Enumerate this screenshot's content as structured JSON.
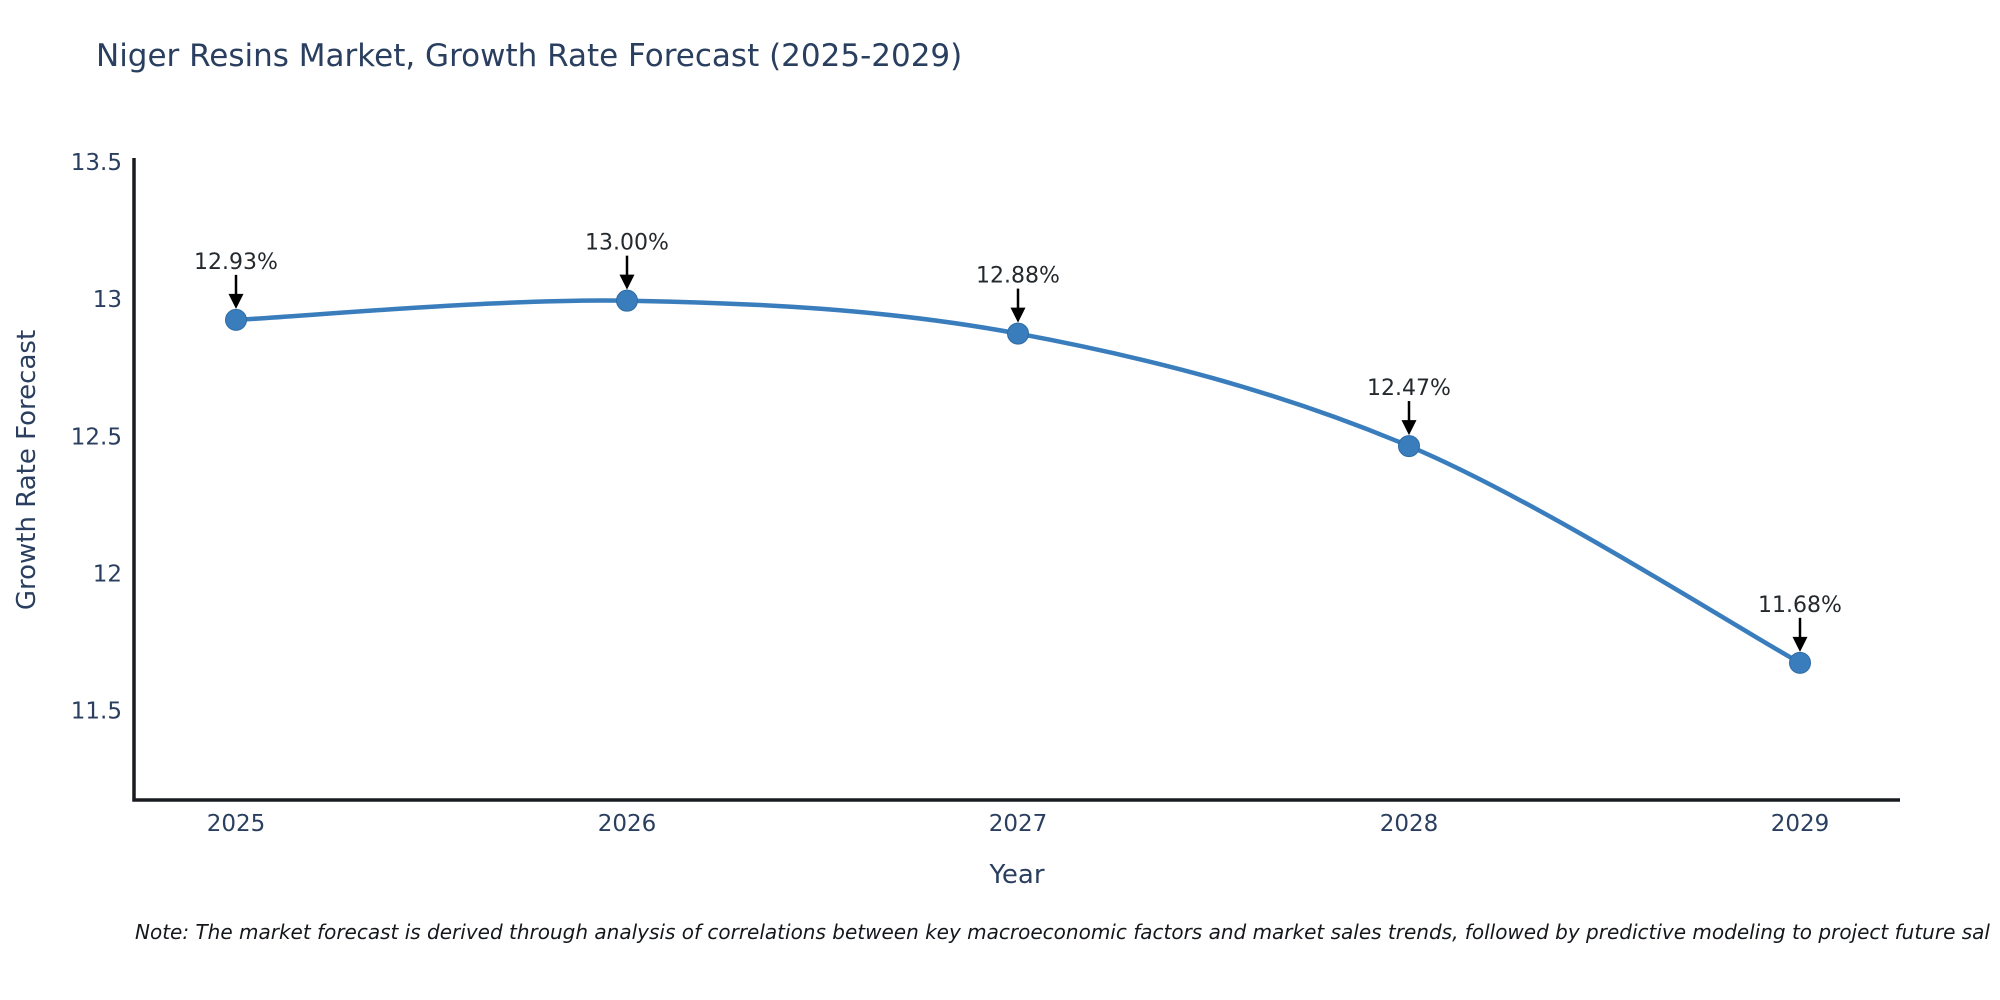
{
  "title": "Niger Resins Market, Growth Rate Forecast (2025-2029)",
  "note": "Note: The market forecast is derived through analysis of correlations between key macroeconomic factors and market sales trends, followed by predictive modeling to project future sal",
  "chart_data": {
    "type": "line",
    "title": "Niger Resins Market, Growth Rate Forecast (2025-2029)",
    "xlabel": "Year",
    "ylabel": "Growth Rate Forecast",
    "categories": [
      "2025",
      "2026",
      "2027",
      "2028",
      "2029"
    ],
    "series": [
      {
        "name": "Growth Rate Forecast",
        "values": [
          12.93,
          13.0,
          12.88,
          12.47,
          11.68
        ]
      }
    ],
    "point_labels": [
      "12.93%",
      "13.00%",
      "12.88%",
      "12.47%",
      "11.68%"
    ],
    "yticks": [
      13.5,
      13,
      12.5,
      12,
      11.5
    ],
    "ytick_labels": [
      "13.5",
      "13",
      "12.5",
      "12",
      "11.5"
    ],
    "ylim": [
      11.18,
      13.52
    ],
    "grid": false,
    "legend": "none",
    "smooth": true,
    "colors": {
      "line": "#3a7dbd",
      "marker": "#3a7dbd",
      "marker_edge": "#2f6ba3",
      "axis": "#181b20",
      "tick_text": "#2a3f5f",
      "annotation_text": "#24292e",
      "annotation_arrow": "#000000"
    }
  }
}
